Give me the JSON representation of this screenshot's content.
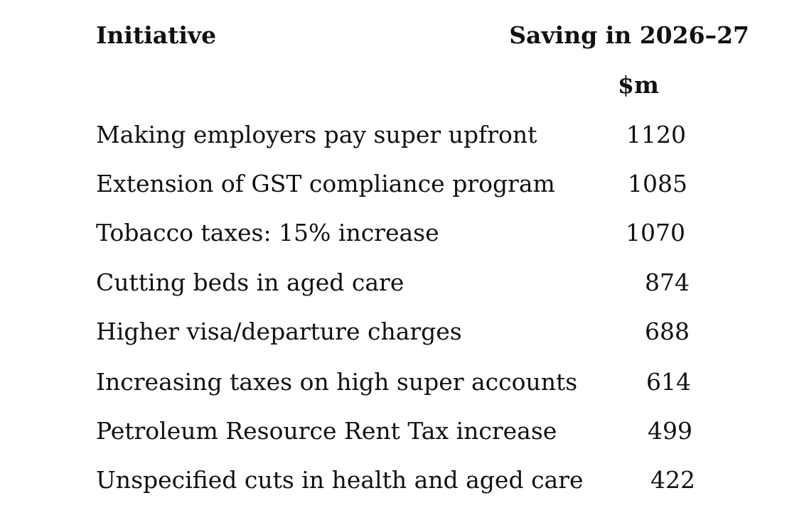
{
  "header": {
    "initiative": "Initiative",
    "saving": "Saving in 2026–27",
    "unit": "$m"
  },
  "rows": [
    {
      "label": "Making employers pay super upfront",
      "value": "1120"
    },
    {
      "label": "Extension of GST compliance program",
      "value": "1085"
    },
    {
      "label": "Tobacco taxes: 15% increase",
      "value": "1070"
    },
    {
      "label": "Cutting beds in aged care",
      "value": "874"
    },
    {
      "label": "Higher visa/departure charges",
      "value": "688"
    },
    {
      "label": "Increasing taxes on high super accounts",
      "value": "614"
    },
    {
      "label": "Petroleum Resource Rent Tax increase",
      "value": "499"
    },
    {
      "label": "Unspecified cuts in health and aged care",
      "value": "422"
    }
  ]
}
